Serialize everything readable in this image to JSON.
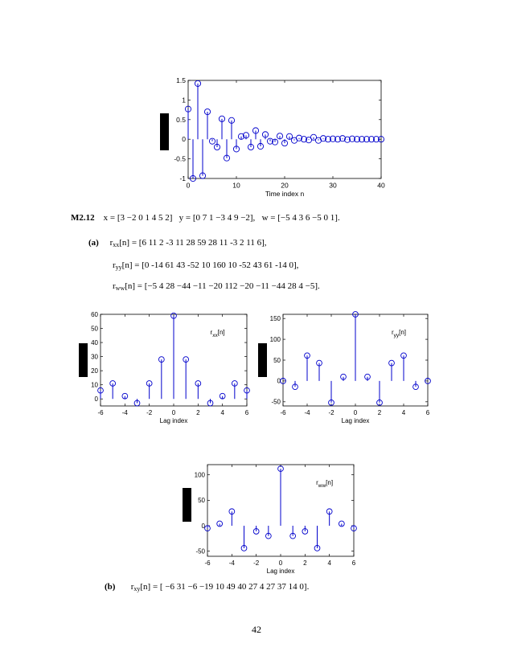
{
  "plots": [
    {
      "id": "top",
      "xlim": [
        0,
        40
      ],
      "ylim": [
        -1,
        1.5
      ],
      "xticks": [
        "0",
        "10",
        "20",
        "30",
        "40"
      ],
      "xtick_vals": [
        0,
        10,
        20,
        30,
        40
      ],
      "yticks": [
        "-1",
        "-0.5",
        "0",
        "0.5",
        "1",
        "1.5"
      ],
      "ytick_vals": [
        -1,
        -0.5,
        0,
        0.5,
        1,
        1.5
      ],
      "xlabel": "Time index  n",
      "legend": ""
    },
    {
      "id": "rxx",
      "xlim": [
        -6,
        6
      ],
      "ylim": [
        -5,
        60
      ],
      "xticks": [
        "-6",
        "-4",
        "-2",
        "0",
        "2",
        "4",
        "6"
      ],
      "xtick_vals": [
        -6,
        -4,
        -2,
        0,
        2,
        4,
        6
      ],
      "yticks": [
        "0",
        "10",
        "20",
        "30",
        "40",
        "50",
        "60"
      ],
      "ytick_vals": [
        0,
        10,
        20,
        30,
        40,
        50,
        60
      ],
      "xlabel": "Lag index",
      "legend": "r",
      "legend_sub": "xx",
      "legend_arg": "[n]"
    },
    {
      "id": "ryy",
      "xlim": [
        -6,
        6
      ],
      "ylim": [
        -60,
        160
      ],
      "xticks": [
        "-6",
        "-4",
        "-2",
        "0",
        "2",
        "4",
        "6"
      ],
      "xtick_vals": [
        -6,
        -4,
        -2,
        0,
        2,
        4,
        6
      ],
      "yticks": [
        "-50",
        "0",
        "50",
        "100",
        "150"
      ],
      "ytick_vals": [
        -50,
        0,
        50,
        100,
        150
      ],
      "xlabel": "Lag index",
      "legend": "r",
      "legend_sub": "yy",
      "legend_arg": "[n]"
    },
    {
      "id": "rww",
      "xlim": [
        -6,
        6
      ],
      "ylim": [
        -60,
        120
      ],
      "xticks": [
        "-6",
        "-4",
        "-2",
        "0",
        "2",
        "4",
        "6"
      ],
      "xtick_vals": [
        -6,
        -4,
        -2,
        0,
        2,
        4,
        6
      ],
      "yticks": [
        "-50",
        "0",
        "50",
        "100"
      ],
      "ytick_vals": [
        -50,
        0,
        50,
        100
      ],
      "xlabel": "Lag index",
      "legend": "r",
      "legend_sub": "ww",
      "legend_arg": "[n]"
    }
  ],
  "chart_data": [
    {
      "type": "stem",
      "x": [
        0,
        1,
        2,
        3,
        4,
        5,
        6,
        7,
        8,
        9,
        10,
        11,
        12,
        13,
        14,
        15,
        16,
        17,
        18,
        19,
        20,
        21,
        22,
        23,
        24,
        25,
        26,
        27,
        28,
        29,
        30,
        31,
        32,
        33,
        34,
        35,
        36,
        37,
        38,
        39,
        40
      ],
      "y": [
        0.77,
        -1.0,
        1.42,
        -0.93,
        0.7,
        -0.05,
        -0.2,
        0.52,
        -0.48,
        0.48,
        -0.25,
        0.07,
        0.1,
        -0.2,
        0.22,
        -0.18,
        0.12,
        -0.05,
        -0.07,
        0.08,
        -0.1,
        0.07,
        -0.03,
        0.03,
        0.0,
        -0.02,
        0.05,
        -0.03,
        0.02,
        0.0,
        0.01,
        0.0,
        0.02,
        -0.01,
        0.01,
        0.0,
        0.0,
        0.0,
        0.0,
        0.0,
        0.0
      ],
      "xlabel": "Time index  n",
      "xlim": [
        0,
        40
      ],
      "ylim": [
        -1,
        1.5
      ]
    },
    {
      "type": "stem",
      "x": [
        -6,
        -5,
        -4,
        -3,
        -2,
        -1,
        0,
        1,
        2,
        3,
        4,
        5,
        6
      ],
      "y": [
        6,
        11,
        2,
        -3,
        11,
        28,
        59,
        28,
        11,
        -3,
        2,
        11,
        6
      ],
      "xlabel": "Lag index",
      "legend": "rxx[n]",
      "xlim": [
        -6,
        6
      ],
      "ylim": [
        -5,
        60
      ]
    },
    {
      "type": "stem",
      "x": [
        -6,
        -5,
        -4,
        -3,
        -2,
        -1,
        0,
        1,
        2,
        3,
        4,
        5,
        6
      ],
      "y": [
        0,
        -14,
        61,
        43,
        -52,
        10,
        160,
        10,
        -52,
        43,
        61,
        -14,
        0
      ],
      "xlabel": "Lag index",
      "legend": "ryy[n]",
      "xlim": [
        -6,
        6
      ],
      "ylim": [
        -60,
        160
      ]
    },
    {
      "type": "stem",
      "x": [
        -6,
        -5,
        -4,
        -3,
        -2,
        -1,
        0,
        1,
        2,
        3,
        4,
        5,
        6
      ],
      "y": [
        -5,
        4,
        28,
        -44,
        -11,
        -20,
        112,
        -20,
        -11,
        -44,
        28,
        4,
        -5
      ],
      "xlabel": "Lag index",
      "legend": "rww[n]",
      "xlim": [
        -6,
        6
      ],
      "ylim": [
        -60,
        120
      ]
    }
  ],
  "text": {
    "problem_label": "M2.12",
    "seq_x": "x = [3   −2   0   1   4   5   2]",
    "seq_y": "y = [0   7   1   −3   4   9   −2],",
    "seq_w": "w = [−5   4   3   6   −5   0   1].",
    "part_a": "(a)",
    "rxx_name": "r",
    "rxx_sub": "xx",
    "rxx_val": "[n] =  [6    11     2    -3    11    28    59    28    11    -3     2    11    6],",
    "ryy_name": "r",
    "ryy_sub": "yy",
    "ryy_val": "[n] =  [0    -14    61    43    -52    10   160    10    -52    43    61    -14    0],",
    "rww_name": "r",
    "rww_sub": "ww",
    "rww_val": "[n] =  [−5     4    28    −44    −11    −20    112    −20    −11    −44    28     4    −5].",
    "part_b": "(b)",
    "rxy_name": "r",
    "rxy_sub": "xy",
    "rxy_val": "[n] =  [ −6     31     −6    −19     10     49     40     27      4     27     37     14     0].",
    "page_number": "42"
  },
  "colors": {
    "stem": "#0000cc",
    "axis": "#000000"
  }
}
